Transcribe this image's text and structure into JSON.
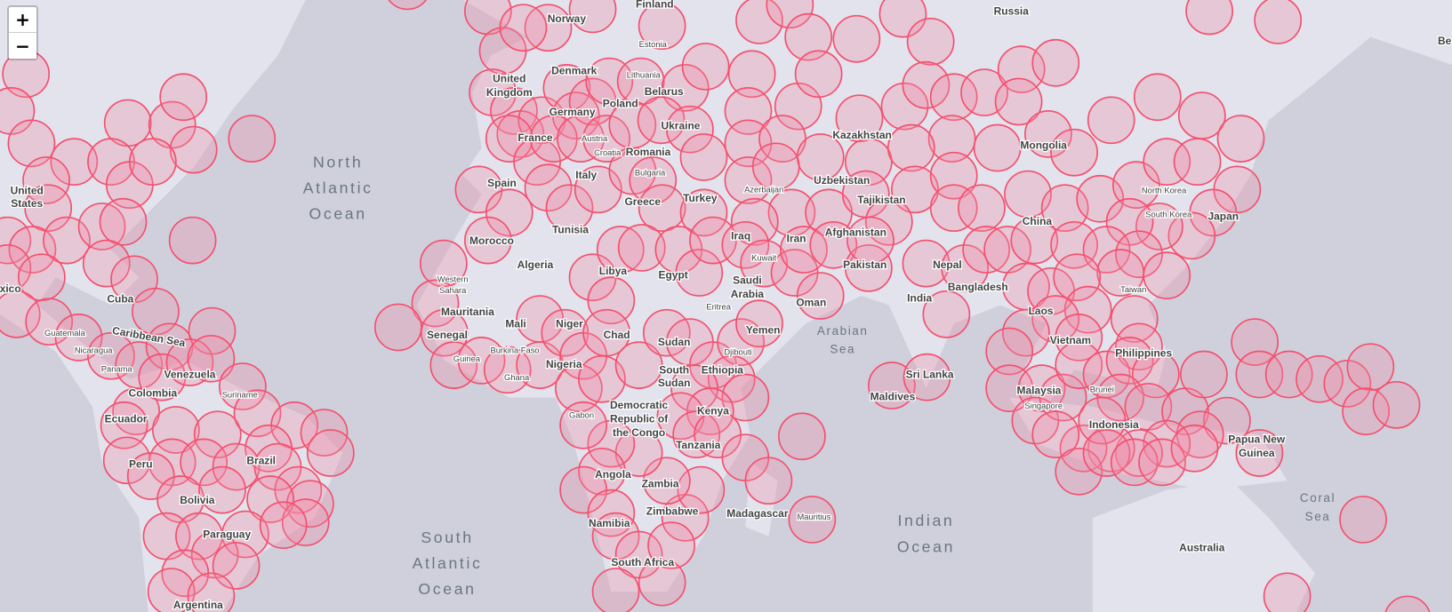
{
  "controls": {
    "zoom_in": "+",
    "zoom_out": "−"
  },
  "colors": {
    "water": "#cfd0dc",
    "land": "#e2e3ec",
    "marker_stroke": "#f4506e",
    "marker_fill": "rgba(238,140,168,0.32)"
  },
  "oceans": [
    [
      "North",
      "Atlantic",
      "Ocean"
    ],
    [
      "Arabian",
      "Sea"
    ],
    [
      "Indian",
      "Ocean"
    ],
    [
      "South",
      "Atlantic",
      "Ocean"
    ],
    [
      "Coral",
      "Sea"
    ]
  ],
  "countries": [
    "Finland",
    "Russia",
    "Norway",
    "Estonia",
    "Denmark",
    "Lithuania",
    "United",
    "Kingdom",
    "Belarus",
    "Poland",
    "Germany",
    "Ukraine",
    "Kazakhstan",
    "France",
    "Austria",
    "Mongolia",
    "Croatia",
    "Romania",
    "Bulgaria",
    "Italy",
    "Uzbekistan",
    "Spain",
    "Azerbaijan",
    "North Korea",
    "Turkey",
    "Greece",
    "Tajikistan",
    "United",
    "States",
    "China",
    "South Korea",
    "Japan",
    "Tunisia",
    "Afghanistan",
    "Iraq",
    "Iran",
    "Morocco",
    "Kuwait",
    "Algeria",
    "Nepal",
    "Libya",
    "Egypt",
    "Pakistan",
    "Saudi",
    "Arabia",
    "Bangladesh",
    "Taiwan",
    "Western",
    "Sahara",
    "Cuba",
    "exico",
    "India",
    "Oman",
    "Laos",
    "Mauritania",
    "Eritrea",
    "Mali",
    "Niger",
    "Yemen",
    "Chad",
    "Guatemala",
    "Caribbean Sea",
    "Senegal",
    "Sudan",
    "Vietnam",
    "Nicaragua",
    "Djibouti",
    "Philippines",
    "Guinea",
    "Burkina Faso",
    "Nigeria",
    "Panama",
    "South",
    "Sudan",
    "Ethiopia",
    "Venezuela",
    "Ghana",
    "Sri Lanka",
    "Malaysia",
    "Colombia",
    "Suriname",
    "Maldives",
    "Brunei",
    "Singapore",
    "Democratic",
    "Republic of",
    "the Congo",
    "Gabon",
    "Kenya",
    "Ecuador",
    "Indonesia",
    "Tanzania",
    "Papua New",
    "Guinea",
    "Brazil",
    "Peru",
    "Angola",
    "Zambia",
    "Bolivia",
    "Zimbabwe",
    "Madagascar",
    "Mauritius",
    "Paraguay",
    "Namibia",
    "South Africa",
    "Argentina",
    "Australia",
    "Be"
  ]
}
